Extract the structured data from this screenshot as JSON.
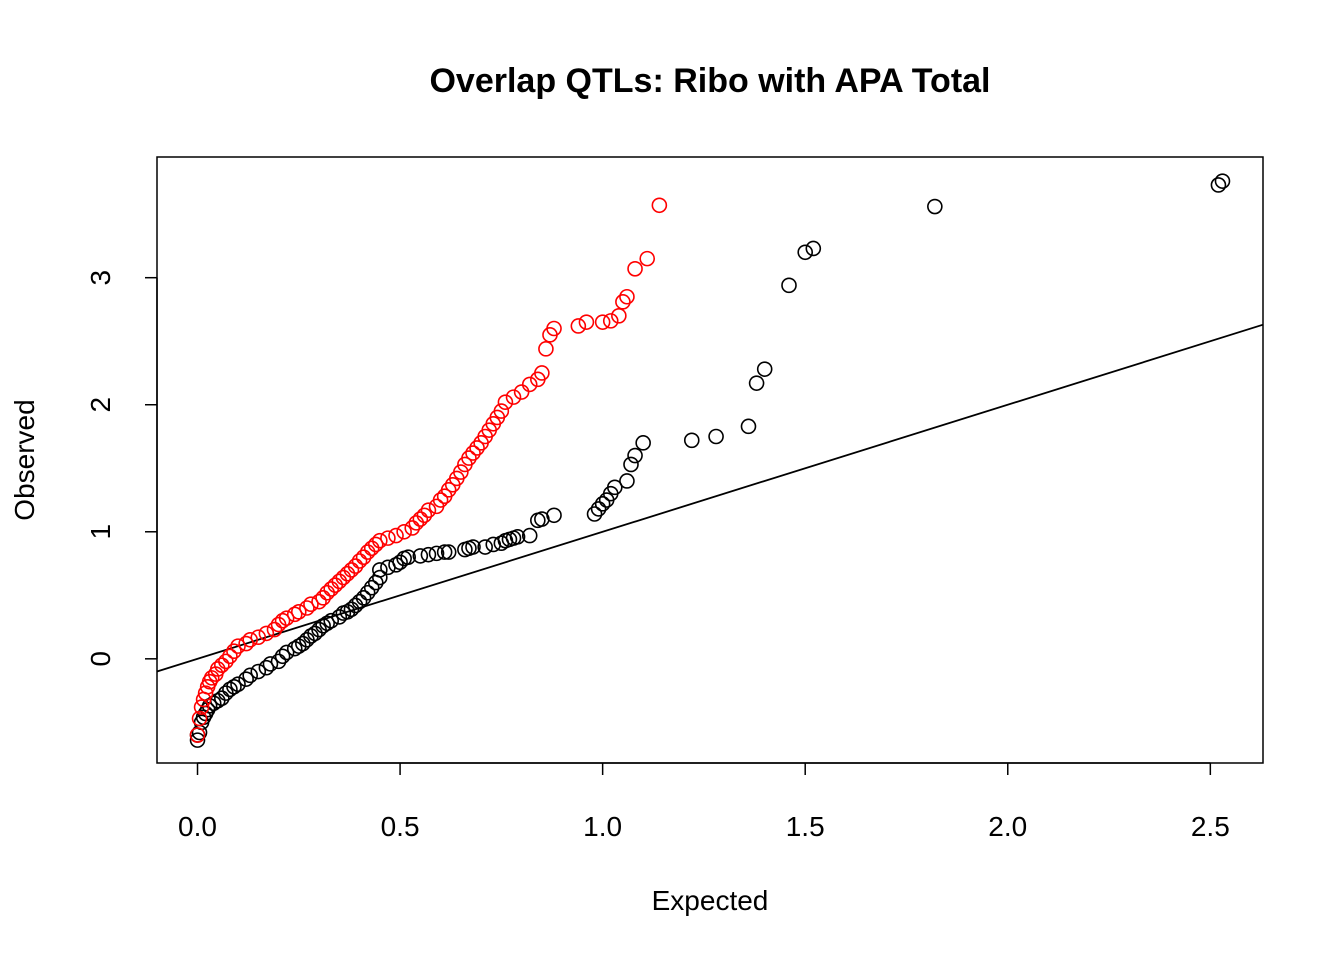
{
  "chart_data": {
    "type": "scatter",
    "title": "Overlap QTLs: Ribo with APA Total",
    "xlabel": "Expected",
    "ylabel": "Observed",
    "xlim": [
      -0.1,
      2.63
    ],
    "ylim": [
      -0.82,
      3.95
    ],
    "xticks": [
      "0.0",
      "0.5",
      "1.0",
      "1.5",
      "2.0",
      "2.5"
    ],
    "yticks": [
      "0",
      "1",
      "2",
      "3"
    ],
    "reference_line": {
      "intercept": 0,
      "slope": 1,
      "color": "#000000"
    },
    "grid": false,
    "legend": "none",
    "series": [
      {
        "color": "#000000",
        "points": [
          [
            0.0,
            -0.64
          ],
          [
            0.0,
            -0.6
          ],
          [
            0.005,
            -0.58
          ],
          [
            0.01,
            -0.5
          ],
          [
            0.015,
            -0.46
          ],
          [
            0.02,
            -0.43
          ],
          [
            0.025,
            -0.4
          ],
          [
            0.03,
            -0.37
          ],
          [
            0.04,
            -0.35
          ],
          [
            0.05,
            -0.33
          ],
          [
            0.06,
            -0.31
          ],
          [
            0.07,
            -0.27
          ],
          [
            0.08,
            -0.24
          ],
          [
            0.09,
            -0.22
          ],
          [
            0.1,
            -0.2
          ],
          [
            0.12,
            -0.16
          ],
          [
            0.13,
            -0.13
          ],
          [
            0.15,
            -0.1
          ],
          [
            0.17,
            -0.07
          ],
          [
            0.18,
            -0.04
          ],
          [
            0.2,
            -0.02
          ],
          [
            0.21,
            0.02
          ],
          [
            0.22,
            0.05
          ],
          [
            0.24,
            0.08
          ],
          [
            0.25,
            0.1
          ],
          [
            0.26,
            0.12
          ],
          [
            0.27,
            0.15
          ],
          [
            0.28,
            0.18
          ],
          [
            0.29,
            0.2
          ],
          [
            0.3,
            0.23
          ],
          [
            0.31,
            0.26
          ],
          [
            0.32,
            0.28
          ],
          [
            0.33,
            0.3
          ],
          [
            0.35,
            0.33
          ],
          [
            0.36,
            0.36
          ],
          [
            0.37,
            0.37
          ],
          [
            0.38,
            0.39
          ],
          [
            0.39,
            0.42
          ],
          [
            0.4,
            0.45
          ],
          [
            0.41,
            0.48
          ],
          [
            0.42,
            0.52
          ],
          [
            0.43,
            0.56
          ],
          [
            0.44,
            0.6
          ],
          [
            0.45,
            0.64
          ],
          [
            0.45,
            0.7
          ],
          [
            0.47,
            0.72
          ],
          [
            0.49,
            0.74
          ],
          [
            0.5,
            0.76
          ],
          [
            0.51,
            0.79
          ],
          [
            0.52,
            0.8
          ],
          [
            0.55,
            0.81
          ],
          [
            0.57,
            0.82
          ],
          [
            0.59,
            0.83
          ],
          [
            0.61,
            0.84
          ],
          [
            0.62,
            0.84
          ],
          [
            0.66,
            0.86
          ],
          [
            0.67,
            0.87
          ],
          [
            0.68,
            0.88
          ],
          [
            0.71,
            0.88
          ],
          [
            0.73,
            0.9
          ],
          [
            0.75,
            0.91
          ],
          [
            0.76,
            0.93
          ],
          [
            0.77,
            0.94
          ],
          [
            0.78,
            0.95
          ],
          [
            0.79,
            0.96
          ],
          [
            0.82,
            0.97
          ],
          [
            0.84,
            1.09
          ],
          [
            0.85,
            1.1
          ],
          [
            0.88,
            1.13
          ],
          [
            0.98,
            1.14
          ],
          [
            0.99,
            1.18
          ],
          [
            1.0,
            1.22
          ],
          [
            1.01,
            1.25
          ],
          [
            1.02,
            1.3
          ],
          [
            1.03,
            1.35
          ],
          [
            1.06,
            1.4
          ],
          [
            1.07,
            1.53
          ],
          [
            1.08,
            1.6
          ],
          [
            1.1,
            1.7
          ],
          [
            1.22,
            1.72
          ],
          [
            1.28,
            1.75
          ],
          [
            1.36,
            1.83
          ],
          [
            1.38,
            2.17
          ],
          [
            1.4,
            2.28
          ],
          [
            1.46,
            2.94
          ],
          [
            1.5,
            3.2
          ],
          [
            1.52,
            3.23
          ],
          [
            1.82,
            3.56
          ],
          [
            2.52,
            3.73
          ],
          [
            2.53,
            3.76
          ]
        ]
      },
      {
        "color": "#ff0000",
        "points": [
          [
            0.0,
            -0.6
          ],
          [
            0.005,
            -0.47
          ],
          [
            0.01,
            -0.38
          ],
          [
            0.015,
            -0.32
          ],
          [
            0.02,
            -0.27
          ],
          [
            0.025,
            -0.22
          ],
          [
            0.03,
            -0.18
          ],
          [
            0.035,
            -0.15
          ],
          [
            0.045,
            -0.12
          ],
          [
            0.05,
            -0.08
          ],
          [
            0.06,
            -0.05
          ],
          [
            0.07,
            -0.02
          ],
          [
            0.08,
            0.02
          ],
          [
            0.09,
            0.06
          ],
          [
            0.1,
            0.1
          ],
          [
            0.12,
            0.12
          ],
          [
            0.13,
            0.15
          ],
          [
            0.15,
            0.17
          ],
          [
            0.17,
            0.2
          ],
          [
            0.19,
            0.23
          ],
          [
            0.2,
            0.27
          ],
          [
            0.21,
            0.3
          ],
          [
            0.22,
            0.32
          ],
          [
            0.24,
            0.35
          ],
          [
            0.25,
            0.37
          ],
          [
            0.27,
            0.4
          ],
          [
            0.28,
            0.43
          ],
          [
            0.3,
            0.45
          ],
          [
            0.31,
            0.48
          ],
          [
            0.32,
            0.52
          ],
          [
            0.33,
            0.55
          ],
          [
            0.34,
            0.58
          ],
          [
            0.35,
            0.61
          ],
          [
            0.36,
            0.64
          ],
          [
            0.37,
            0.67
          ],
          [
            0.38,
            0.7
          ],
          [
            0.39,
            0.73
          ],
          [
            0.4,
            0.77
          ],
          [
            0.41,
            0.8
          ],
          [
            0.42,
            0.84
          ],
          [
            0.43,
            0.87
          ],
          [
            0.44,
            0.9
          ],
          [
            0.45,
            0.93
          ],
          [
            0.47,
            0.95
          ],
          [
            0.49,
            0.97
          ],
          [
            0.51,
            1.0
          ],
          [
            0.53,
            1.03
          ],
          [
            0.54,
            1.07
          ],
          [
            0.55,
            1.1
          ],
          [
            0.56,
            1.13
          ],
          [
            0.57,
            1.17
          ],
          [
            0.59,
            1.2
          ],
          [
            0.6,
            1.25
          ],
          [
            0.61,
            1.28
          ],
          [
            0.62,
            1.33
          ],
          [
            0.63,
            1.37
          ],
          [
            0.64,
            1.42
          ],
          [
            0.65,
            1.47
          ],
          [
            0.66,
            1.53
          ],
          [
            0.67,
            1.58
          ],
          [
            0.68,
            1.62
          ],
          [
            0.69,
            1.66
          ],
          [
            0.7,
            1.7
          ],
          [
            0.71,
            1.75
          ],
          [
            0.72,
            1.8
          ],
          [
            0.73,
            1.85
          ],
          [
            0.74,
            1.9
          ],
          [
            0.75,
            1.95
          ],
          [
            0.76,
            2.02
          ],
          [
            0.78,
            2.06
          ],
          [
            0.8,
            2.1
          ],
          [
            0.82,
            2.16
          ],
          [
            0.84,
            2.2
          ],
          [
            0.85,
            2.25
          ],
          [
            0.86,
            2.44
          ],
          [
            0.87,
            2.55
          ],
          [
            0.88,
            2.6
          ],
          [
            0.94,
            2.62
          ],
          [
            0.96,
            2.65
          ],
          [
            1.0,
            2.65
          ],
          [
            1.02,
            2.66
          ],
          [
            1.04,
            2.7
          ],
          [
            1.05,
            2.81
          ],
          [
            1.06,
            2.85
          ],
          [
            1.08,
            3.07
          ],
          [
            1.11,
            3.15
          ],
          [
            1.14,
            3.57
          ]
        ]
      }
    ]
  }
}
